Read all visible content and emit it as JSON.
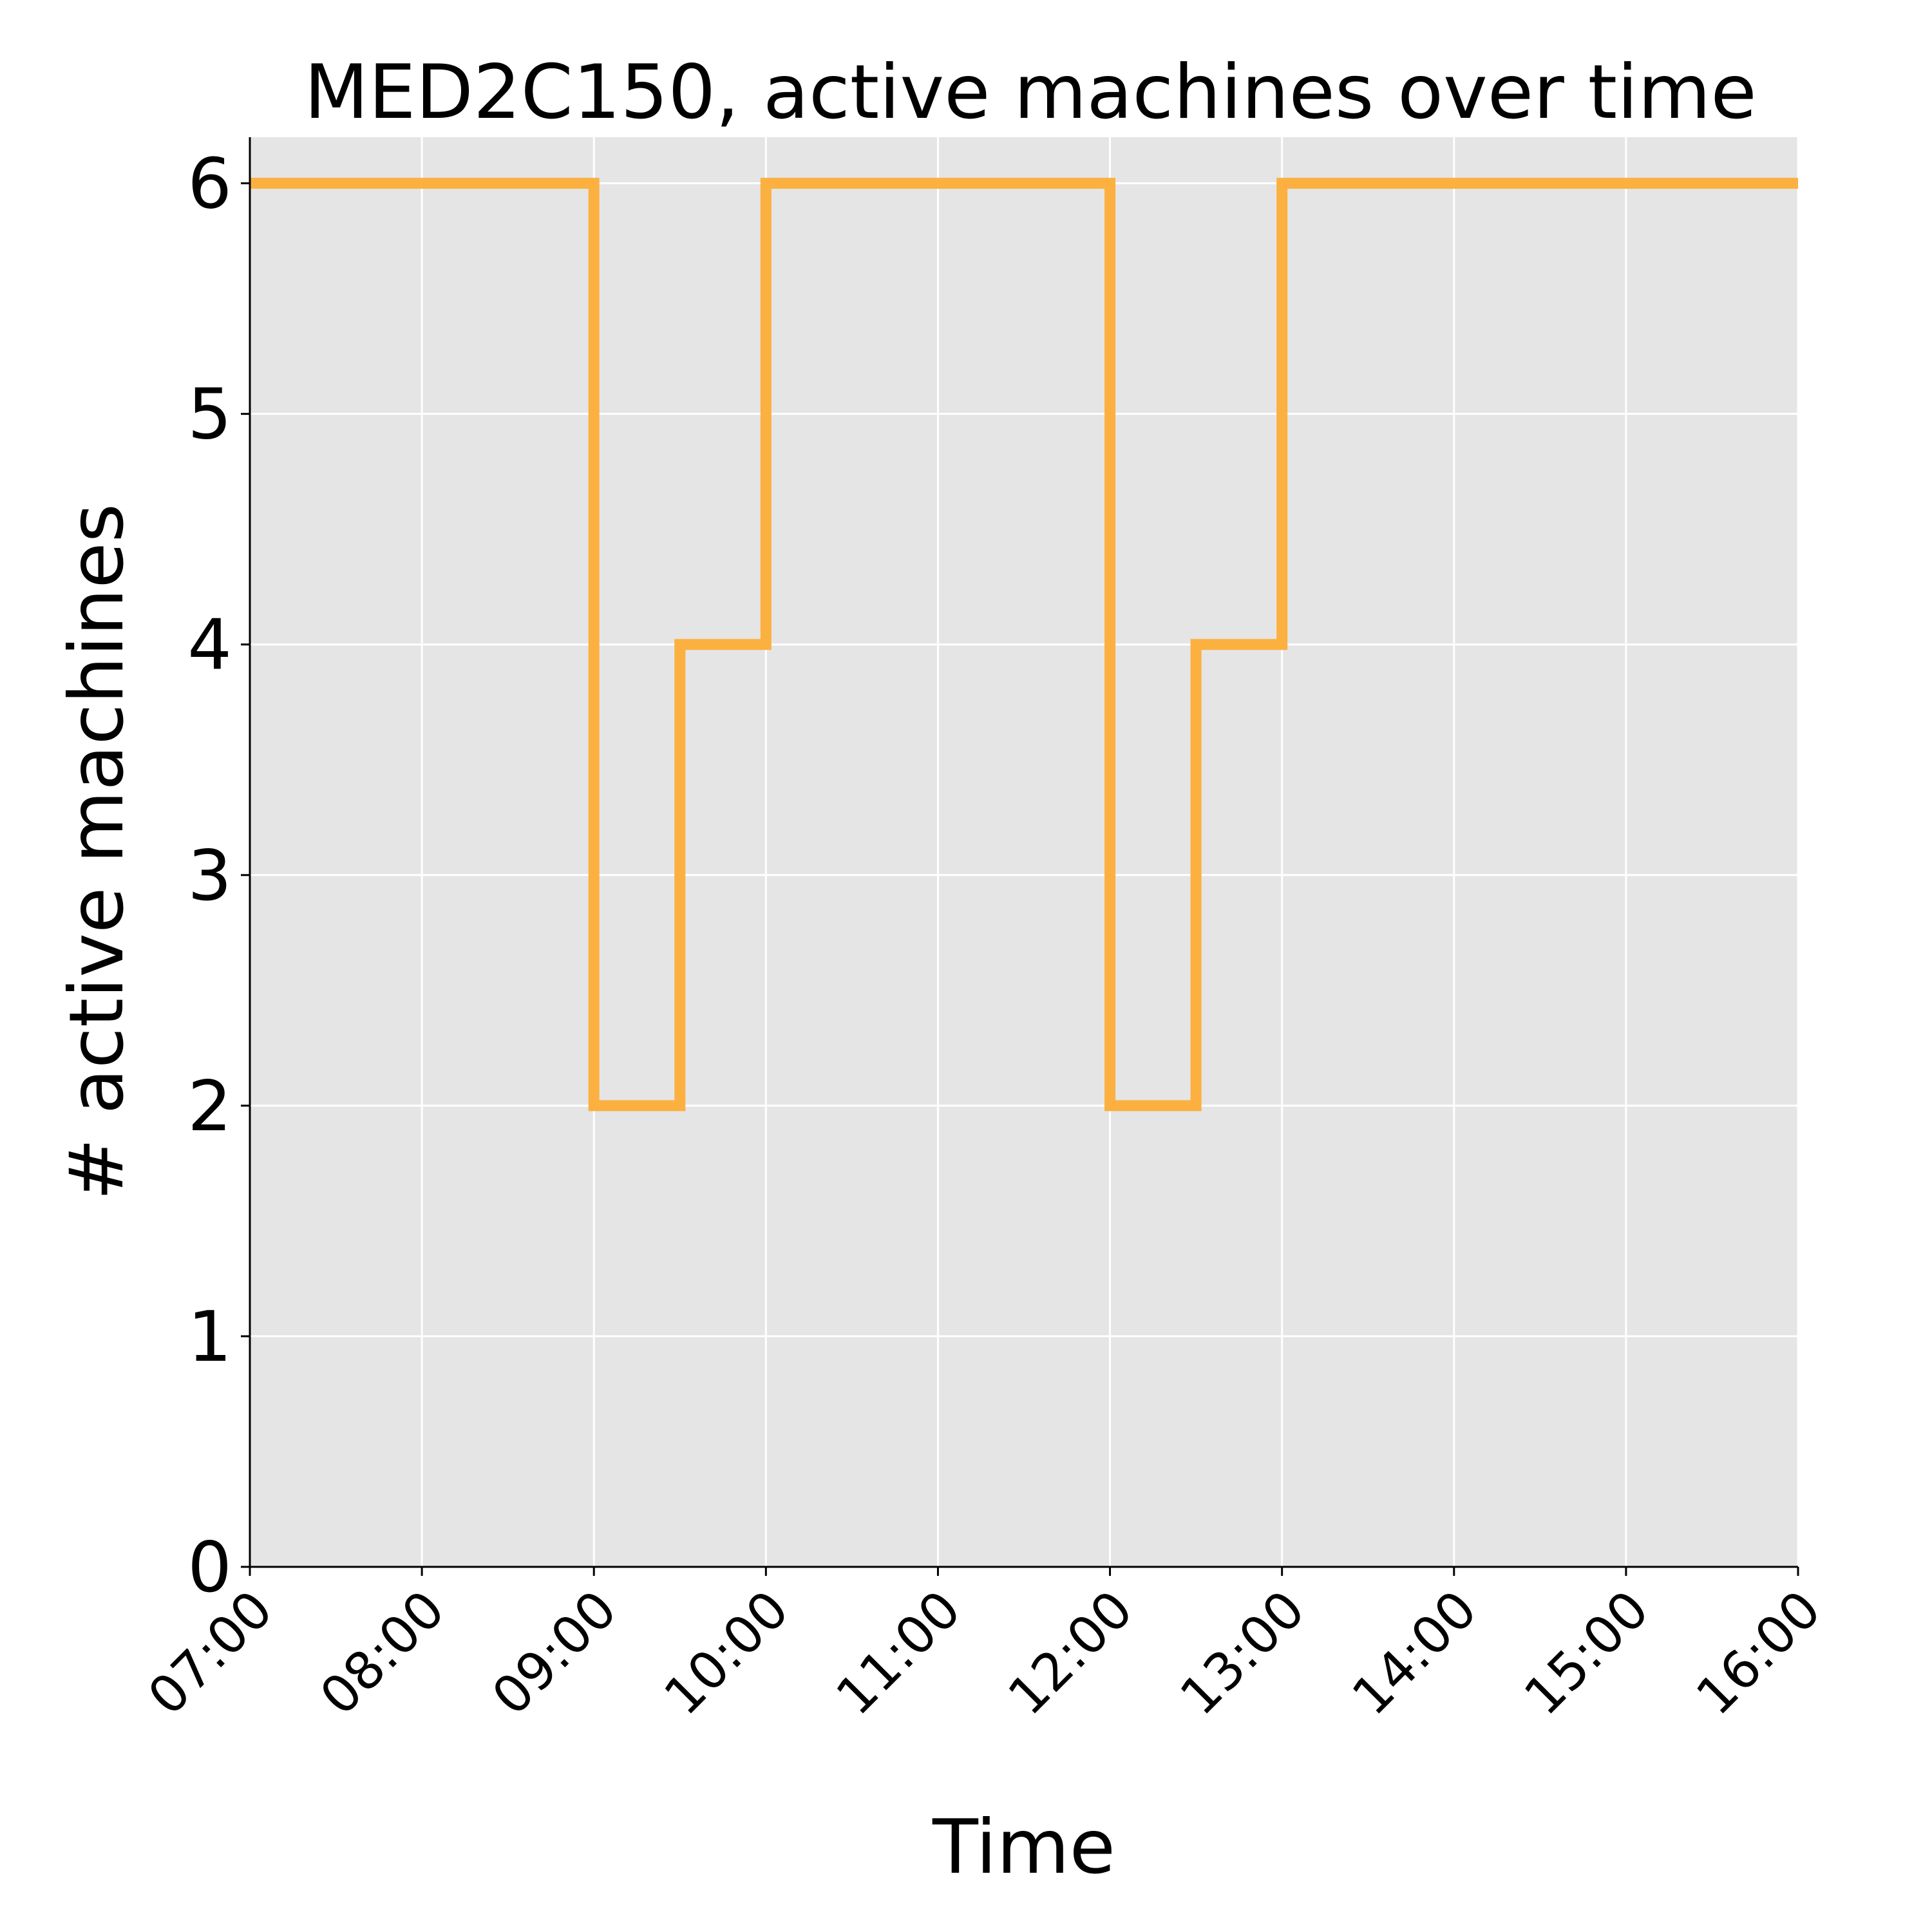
{
  "chart_data": {
    "type": "line",
    "subtype": "step",
    "title": "MED2C150, active machines over time",
    "xlabel": "Time",
    "ylabel": "# active machines",
    "x_ticks": [
      "07:00",
      "08:00",
      "09:00",
      "10:00",
      "11:00",
      "12:00",
      "13:00",
      "14:00",
      "15:00",
      "16:00"
    ],
    "y_ticks": [
      "0",
      "1",
      "2",
      "3",
      "4",
      "5",
      "6"
    ],
    "xlim": [
      "07:00",
      "16:00"
    ],
    "ylim": [
      0,
      6.2
    ],
    "grid": true,
    "legend": "none",
    "series": [
      {
        "color": "#fbb040",
        "points": [
          {
            "x": "07:00",
            "y": 6
          },
          {
            "x": "09:00",
            "y": 2
          },
          {
            "x": "09:30",
            "y": 4
          },
          {
            "x": "10:00",
            "y": 6
          },
          {
            "x": "12:00",
            "y": 2
          },
          {
            "x": "12:30",
            "y": 4
          },
          {
            "x": "13:00",
            "y": 6
          },
          {
            "x": "16:00",
            "y": 6
          }
        ]
      }
    ],
    "colors": {
      "plot_background": "#e5e5e5",
      "grid": "#ffffff",
      "axis": "#000000"
    }
  }
}
